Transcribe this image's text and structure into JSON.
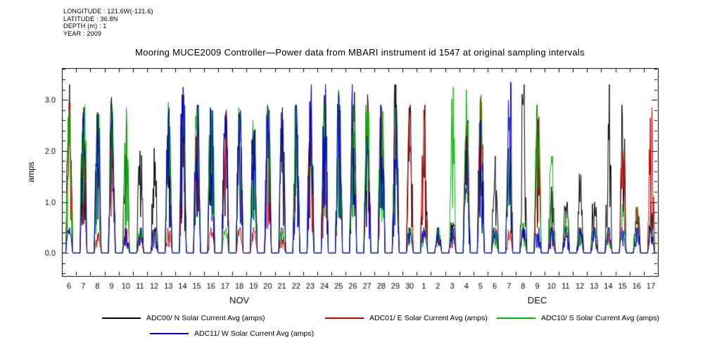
{
  "header": {
    "longitude": "LONGITUDE : 121.6W(-121.6)",
    "latitude": "LATITUDE : 36.8N",
    "depth": "DEPTH (m) : 1",
    "year": "YEAR : 2009"
  },
  "title": "Mooring MUCE2009 Controller—Power data from MBARI instrument id 1547 at original sampling intervals",
  "chart_data": {
    "type": "line",
    "title": "Mooring MUCE2009 Controller—Power data from MBARI instrument id 1547 at original sampling intervals",
    "xlabel": "",
    "ylabel": "amps",
    "ylim": [
      -0.45,
      3.62
    ],
    "yticks": [
      0.0,
      1.0,
      2.0,
      3.0
    ],
    "ytick_labels": [
      "0.0",
      "1.0",
      "2.0",
      "3.0"
    ],
    "y_minor_step": 0.2,
    "grid": false,
    "legend_position": "bottom",
    "x_day_labels": [
      "6",
      "7",
      "8",
      "9",
      "10",
      "11",
      "12",
      "13",
      "14",
      "15",
      "16",
      "17",
      "18",
      "19",
      "20",
      "21",
      "22",
      "23",
      "24",
      "25",
      "26",
      "27",
      "28",
      "29",
      "30",
      "1",
      "2",
      "3",
      "4",
      "5",
      "6",
      "7",
      "8",
      "9",
      "10",
      "11",
      "12",
      "13",
      "14",
      "15",
      "16",
      "17"
    ],
    "months": [
      {
        "label": "NOV",
        "start": 0,
        "end": 24
      },
      {
        "label": "DEC",
        "start": 25,
        "end": 41
      }
    ],
    "series": [
      {
        "name": "ADC00/ N Solar Current Avg (amps)",
        "color": "#000000",
        "daily_peaks": [
          3.3,
          2.85,
          2.75,
          3.05,
          2.85,
          2.0,
          2.05,
          2.85,
          3.1,
          2.9,
          2.8,
          2.8,
          2.75,
          2.5,
          2.9,
          2.85,
          2.9,
          2.85,
          3.2,
          3.1,
          3.15,
          3.1,
          2.85,
          3.3,
          2.9,
          2.9,
          0.5,
          0.6,
          2.6,
          3.0,
          1.9,
          2.1,
          3.3,
          2.8,
          1.3,
          1.0,
          1.55,
          1.0,
          3.3,
          2.9,
          0.9,
          1.0
        ]
      },
      {
        "name": "ADC01/ E Solar Current Avg (amps)",
        "color": "#cc0000",
        "daily_peaks": [
          2.95,
          2.6,
          0.4,
          2.6,
          0.5,
          0.4,
          0.45,
          0.5,
          2.9,
          2.85,
          0.5,
          2.75,
          0.5,
          0.5,
          2.4,
          0.5,
          2.3,
          2.6,
          2.8,
          2.9,
          2.9,
          2.85,
          2.8,
          2.85,
          2.85,
          2.8,
          0.4,
          0.4,
          2.5,
          3.05,
          0.5,
          0.45,
          0.5,
          2.9,
          0.5,
          0.4,
          0.5,
          0.5,
          0.5,
          2.0,
          0.9,
          2.85
        ]
      },
      {
        "name": "ADC10/ S Solar Current Avg (amps)",
        "color": "#00b400",
        "daily_peaks": [
          2.8,
          2.9,
          2.75,
          2.9,
          2.85,
          0.5,
          0.5,
          2.95,
          2.9,
          2.85,
          2.8,
          0.5,
          2.85,
          2.6,
          2.85,
          0.5,
          2.85,
          2.8,
          2.9,
          3.2,
          2.9,
          2.9,
          2.9,
          2.85,
          0.5,
          0.5,
          0.5,
          3.25,
          3.2,
          3.1,
          0.5,
          2.0,
          0.6,
          2.9,
          1.9,
          0.8,
          0.5,
          0.5,
          0.5,
          0.95,
          0.9,
          0.5
        ]
      },
      {
        "name": "ADC11/ W Solar Current Avg (amps)",
        "color": "#0000cc",
        "daily_peaks": [
          0.5,
          2.75,
          2.7,
          2.75,
          0.5,
          0.5,
          0.5,
          2.8,
          3.25,
          2.9,
          2.85,
          2.75,
          2.8,
          2.4,
          2.8,
          2.75,
          2.9,
          3.3,
          3.3,
          3.15,
          3.3,
          2.3,
          2.9,
          2.9,
          0.5,
          0.5,
          0.5,
          0.5,
          2.3,
          2.6,
          0.5,
          3.35,
          0.5,
          0.5,
          0.5,
          0.5,
          0.5,
          0.5,
          0.5,
          0.5,
          0.5,
          0.5
        ]
      }
    ]
  }
}
